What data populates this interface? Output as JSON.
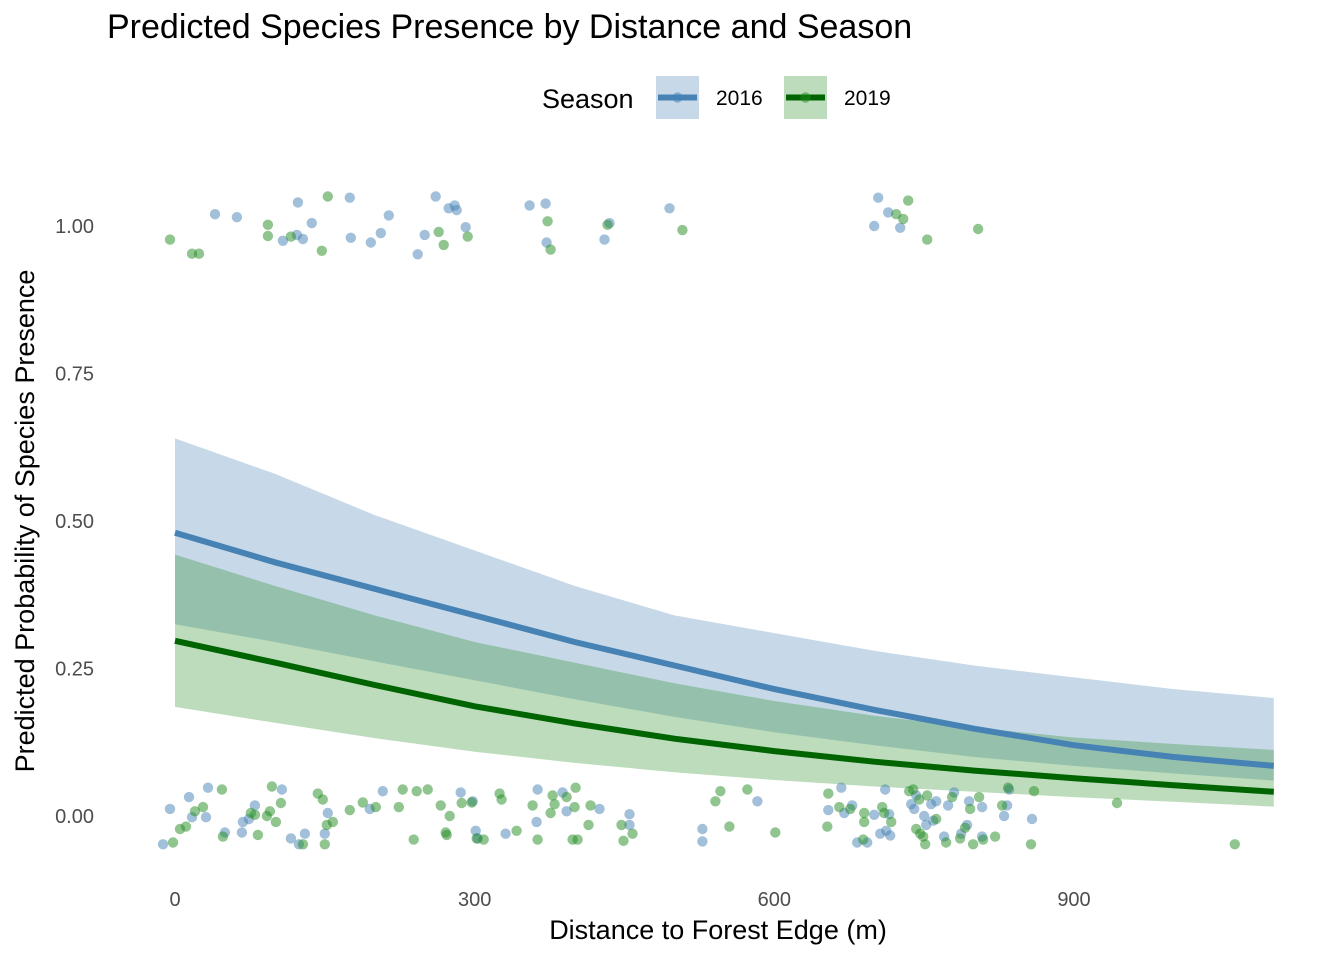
{
  "chart_data": {
    "type": "line",
    "title": "Predicted Species Presence by Distance and Season",
    "xlabel": "Distance to Forest Edge (m)",
    "ylabel": "Predicted Probability of Species Presence",
    "xlim": [
      -45,
      1100
    ],
    "ylim": [
      -0.1,
      1.12
    ],
    "x_ticks": [
      0,
      300,
      600,
      900
    ],
    "x_tick_labels": [
      "0",
      "300",
      "600",
      "900"
    ],
    "y_ticks": [
      0,
      0.25,
      0.5,
      0.75,
      1
    ],
    "y_tick_labels": [
      "0.00",
      "0.25",
      "0.50",
      "0.75",
      "1.00"
    ],
    "grid": false,
    "legend": {
      "title": "Season",
      "placement": "top",
      "entries": [
        "2016",
        "2019"
      ]
    },
    "series": [
      {
        "name": "2016",
        "color": "#4682B4",
        "ribbon_color": "#4682B4",
        "fit": {
          "x": [
            0,
            100,
            200,
            300,
            400,
            500,
            600,
            700,
            800,
            900,
            1000,
            1100
          ],
          "y": [
            0.48,
            0.43,
            0.385,
            0.34,
            0.295,
            0.255,
            0.215,
            0.18,
            0.148,
            0.12,
            0.1,
            0.085
          ],
          "lower": [
            0.325,
            0.295,
            0.262,
            0.23,
            0.198,
            0.168,
            0.142,
            0.12,
            0.1,
            0.085,
            0.072,
            0.06
          ],
          "upper": [
            0.64,
            0.58,
            0.51,
            0.45,
            0.39,
            0.34,
            0.31,
            0.28,
            0.255,
            0.235,
            0.215,
            0.2
          ]
        },
        "points": [
          {
            "x": 40,
            "y": 1.02
          },
          {
            "x": 62,
            "y": 1.015
          },
          {
            "x": 123,
            "y": 1.04
          },
          {
            "x": 108,
            "y": 0.975
          },
          {
            "x": 122,
            "y": 0.985
          },
          {
            "x": 128,
            "y": 0.978
          },
          {
            "x": 137,
            "y": 1.005
          },
          {
            "x": 175,
            "y": 1.048
          },
          {
            "x": 176,
            "y": 0.98
          },
          {
            "x": 196,
            "y": 0.972
          },
          {
            "x": 206,
            "y": 0.988
          },
          {
            "x": 214,
            "y": 1.018
          },
          {
            "x": 243,
            "y": 0.952
          },
          {
            "x": 250,
            "y": 0.985
          },
          {
            "x": 261,
            "y": 1.05
          },
          {
            "x": 274,
            "y": 1.03
          },
          {
            "x": 280,
            "y": 1.035
          },
          {
            "x": 282,
            "y": 1.027
          },
          {
            "x": 291,
            "y": 0.998
          },
          {
            "x": 355,
            "y": 1.035
          },
          {
            "x": 371,
            "y": 1.038
          },
          {
            "x": 372,
            "y": 0.972
          },
          {
            "x": 430,
            "y": 0.977
          },
          {
            "x": 435,
            "y": 1.005
          },
          {
            "x": 495,
            "y": 1.03
          },
          {
            "x": 700,
            "y": 1.0
          },
          {
            "x": 704,
            "y": 1.048
          },
          {
            "x": 714,
            "y": 1.023
          },
          {
            "x": 726,
            "y": 0.997
          },
          {
            "x": -12,
            "y": -0.048
          },
          {
            "x": -5,
            "y": 0.012
          },
          {
            "x": 14,
            "y": 0.032
          },
          {
            "x": 17,
            "y": -0.002
          },
          {
            "x": 31,
            "y": -0.002
          },
          {
            "x": 33,
            "y": 0.048
          },
          {
            "x": 50,
            "y": -0.028
          },
          {
            "x": 67,
            "y": -0.028
          },
          {
            "x": 68,
            "y": -0.01
          },
          {
            "x": 74,
            "y": -0.005
          },
          {
            "x": 80,
            "y": 0.018
          },
          {
            "x": 107,
            "y": 0.045
          },
          {
            "x": 116,
            "y": -0.038
          },
          {
            "x": 124,
            "y": -0.048
          },
          {
            "x": 130,
            "y": -0.03
          },
          {
            "x": 150,
            "y": -0.03
          },
          {
            "x": 153,
            "y": 0.005
          },
          {
            "x": 195,
            "y": 0.012
          },
          {
            "x": 208,
            "y": 0.042
          },
          {
            "x": 286,
            "y": 0.04
          },
          {
            "x": 298,
            "y": 0.025
          },
          {
            "x": 301,
            "y": -0.025
          },
          {
            "x": 303,
            "y": -0.038
          },
          {
            "x": 331,
            "y": -0.03
          },
          {
            "x": 362,
            "y": -0.01
          },
          {
            "x": 363,
            "y": 0.045
          },
          {
            "x": 388,
            "y": 0.04
          },
          {
            "x": 392,
            "y": 0.008
          },
          {
            "x": 425,
            "y": 0.012
          },
          {
            "x": 455,
            "y": -0.015
          },
          {
            "x": 455,
            "y": 0.003
          },
          {
            "x": 528,
            "y": -0.022
          },
          {
            "x": 528,
            "y": -0.043
          },
          {
            "x": 583,
            "y": 0.025
          },
          {
            "x": 654,
            "y": 0.01
          },
          {
            "x": 667,
            "y": 0.048
          },
          {
            "x": 670,
            "y": 0.005
          },
          {
            "x": 678,
            "y": 0.018
          },
          {
            "x": 683,
            "y": -0.045
          },
          {
            "x": 693,
            "y": -0.045
          },
          {
            "x": 700,
            "y": 0.002
          },
          {
            "x": 706,
            "y": -0.03
          },
          {
            "x": 711,
            "y": 0.045
          },
          {
            "x": 712,
            "y": -0.025
          },
          {
            "x": 715,
            "y": 0.003
          },
          {
            "x": 716,
            "y": -0.033
          },
          {
            "x": 737,
            "y": 0.02
          },
          {
            "x": 740,
            "y": 0.012
          },
          {
            "x": 742,
            "y": 0.035
          },
          {
            "x": 750,
            "y": 0.0
          },
          {
            "x": 752,
            "y": -0.015
          },
          {
            "x": 757,
            "y": 0.02
          },
          {
            "x": 759,
            "y": -0.008
          },
          {
            "x": 762,
            "y": 0.025
          },
          {
            "x": 770,
            "y": -0.035
          },
          {
            "x": 774,
            "y": 0.018
          },
          {
            "x": 780,
            "y": 0.04
          },
          {
            "x": 787,
            "y": -0.03
          },
          {
            "x": 793,
            "y": -0.015
          },
          {
            "x": 795,
            "y": 0.025
          },
          {
            "x": 808,
            "y": 0.015
          },
          {
            "x": 808,
            "y": -0.035
          },
          {
            "x": 830,
            "y": 0.0
          },
          {
            "x": 833,
            "y": 0.018
          },
          {
            "x": 835,
            "y": 0.045
          },
          {
            "x": 858,
            "y": -0.005
          }
        ]
      },
      {
        "name": "2019",
        "color": "#006400",
        "ribbon_color": "#228B22",
        "fit": {
          "x": [
            0,
            100,
            200,
            300,
            400,
            500,
            600,
            700,
            800,
            900,
            1000,
            1100
          ],
          "y": [
            0.297,
            0.26,
            0.222,
            0.186,
            0.157,
            0.131,
            0.11,
            0.092,
            0.077,
            0.064,
            0.052,
            0.041
          ],
          "lower": [
            0.185,
            0.158,
            0.132,
            0.109,
            0.09,
            0.074,
            0.061,
            0.05,
            0.041,
            0.032,
            0.024,
            0.016
          ],
          "upper": [
            0.443,
            0.39,
            0.34,
            0.295,
            0.26,
            0.225,
            0.195,
            0.17,
            0.15,
            0.133,
            0.122,
            0.112
          ]
        },
        "points": [
          {
            "x": -5,
            "y": 0.977
          },
          {
            "x": 17,
            "y": 0.953
          },
          {
            "x": 24,
            "y": 0.953
          },
          {
            "x": 93,
            "y": 1.002
          },
          {
            "x": 93,
            "y": 0.983
          },
          {
            "x": 116,
            "y": 0.982
          },
          {
            "x": 147,
            "y": 0.958
          },
          {
            "x": 153,
            "y": 1.05
          },
          {
            "x": 264,
            "y": 0.99
          },
          {
            "x": 269,
            "y": 0.968
          },
          {
            "x": 293,
            "y": 0.982
          },
          {
            "x": 373,
            "y": 1.008
          },
          {
            "x": 376,
            "y": 0.96
          },
          {
            "x": 433,
            "y": 1.002
          },
          {
            "x": 508,
            "y": 0.993
          },
          {
            "x": 722,
            "y": 1.02
          },
          {
            "x": 729,
            "y": 1.012
          },
          {
            "x": 734,
            "y": 1.043
          },
          {
            "x": 753,
            "y": 0.977
          },
          {
            "x": 804,
            "y": 0.995
          },
          {
            "x": -2,
            "y": -0.045
          },
          {
            "x": 5,
            "y": -0.022
          },
          {
            "x": 11,
            "y": -0.018
          },
          {
            "x": 20,
            "y": 0.008
          },
          {
            "x": 28,
            "y": 0.015
          },
          {
            "x": 47,
            "y": 0.045
          },
          {
            "x": 48,
            "y": -0.035
          },
          {
            "x": 76,
            "y": 0.005
          },
          {
            "x": 80,
            "y": 0.002
          },
          {
            "x": 83,
            "y": -0.032
          },
          {
            "x": 92,
            "y": 0.0
          },
          {
            "x": 95,
            "y": 0.008
          },
          {
            "x": 97,
            "y": 0.05
          },
          {
            "x": 101,
            "y": -0.01
          },
          {
            "x": 106,
            "y": 0.022
          },
          {
            "x": 128,
            "y": -0.048
          },
          {
            "x": 143,
            "y": 0.038
          },
          {
            "x": 148,
            "y": 0.028
          },
          {
            "x": 150,
            "y": -0.048
          },
          {
            "x": 152,
            "y": -0.015
          },
          {
            "x": 158,
            "y": -0.01
          },
          {
            "x": 175,
            "y": 0.01
          },
          {
            "x": 188,
            "y": 0.023
          },
          {
            "x": 201,
            "y": 0.015
          },
          {
            "x": 224,
            "y": 0.015
          },
          {
            "x": 228,
            "y": 0.045
          },
          {
            "x": 239,
            "y": -0.04
          },
          {
            "x": 242,
            "y": 0.042
          },
          {
            "x": 253,
            "y": 0.045
          },
          {
            "x": 266,
            "y": 0.018
          },
          {
            "x": 271,
            "y": -0.028
          },
          {
            "x": 272,
            "y": -0.032
          },
          {
            "x": 275,
            "y": 0.0
          },
          {
            "x": 287,
            "y": 0.022
          },
          {
            "x": 297,
            "y": 0.023
          },
          {
            "x": 302,
            "y": -0.038
          },
          {
            "x": 309,
            "y": -0.04
          },
          {
            "x": 325,
            "y": 0.038
          },
          {
            "x": 327,
            "y": 0.028
          },
          {
            "x": 342,
            "y": -0.025
          },
          {
            "x": 358,
            "y": 0.018
          },
          {
            "x": 363,
            "y": -0.04
          },
          {
            "x": 376,
            "y": 0.005
          },
          {
            "x": 378,
            "y": 0.035
          },
          {
            "x": 380,
            "y": 0.02
          },
          {
            "x": 392,
            "y": 0.032
          },
          {
            "x": 398,
            "y": -0.04
          },
          {
            "x": 400,
            "y": 0.015
          },
          {
            "x": 401,
            "y": 0.048
          },
          {
            "x": 403,
            "y": -0.04
          },
          {
            "x": 414,
            "y": -0.015
          },
          {
            "x": 416,
            "y": 0.018
          },
          {
            "x": 447,
            "y": -0.015
          },
          {
            "x": 449,
            "y": -0.042
          },
          {
            "x": 458,
            "y": -0.03
          },
          {
            "x": 541,
            "y": 0.025
          },
          {
            "x": 546,
            "y": 0.042
          },
          {
            "x": 555,
            "y": -0.018
          },
          {
            "x": 573,
            "y": 0.045
          },
          {
            "x": 601,
            "y": -0.028
          },
          {
            "x": 653,
            "y": -0.018
          },
          {
            "x": 654,
            "y": 0.038
          },
          {
            "x": 665,
            "y": 0.015
          },
          {
            "x": 676,
            "y": 0.012
          },
          {
            "x": 689,
            "y": -0.04
          },
          {
            "x": 690,
            "y": 0.005
          },
          {
            "x": 690,
            "y": -0.01
          },
          {
            "x": 708,
            "y": 0.015
          },
          {
            "x": 710,
            "y": 0.005
          },
          {
            "x": 717,
            "y": -0.01
          },
          {
            "x": 735,
            "y": 0.042
          },
          {
            "x": 739,
            "y": 0.045
          },
          {
            "x": 742,
            "y": -0.022
          },
          {
            "x": 745,
            "y": 0.028
          },
          {
            "x": 746,
            "y": -0.03
          },
          {
            "x": 749,
            "y": -0.035
          },
          {
            "x": 751,
            "y": -0.048
          },
          {
            "x": 753,
            "y": 0.035
          },
          {
            "x": 762,
            "y": -0.005
          },
          {
            "x": 772,
            "y": -0.045
          },
          {
            "x": 778,
            "y": 0.032
          },
          {
            "x": 786,
            "y": -0.038
          },
          {
            "x": 791,
            "y": -0.02
          },
          {
            "x": 796,
            "y": 0.012
          },
          {
            "x": 799,
            "y": -0.048
          },
          {
            "x": 805,
            "y": 0.032
          },
          {
            "x": 809,
            "y": -0.04
          },
          {
            "x": 821,
            "y": -0.035
          },
          {
            "x": 828,
            "y": 0.018
          },
          {
            "x": 834,
            "y": 0.048
          },
          {
            "x": 857,
            "y": -0.048
          },
          {
            "x": 860,
            "y": 0.042
          },
          {
            "x": 943,
            "y": 0.022
          },
          {
            "x": 1061,
            "y": -0.048
          }
        ]
      }
    ]
  }
}
